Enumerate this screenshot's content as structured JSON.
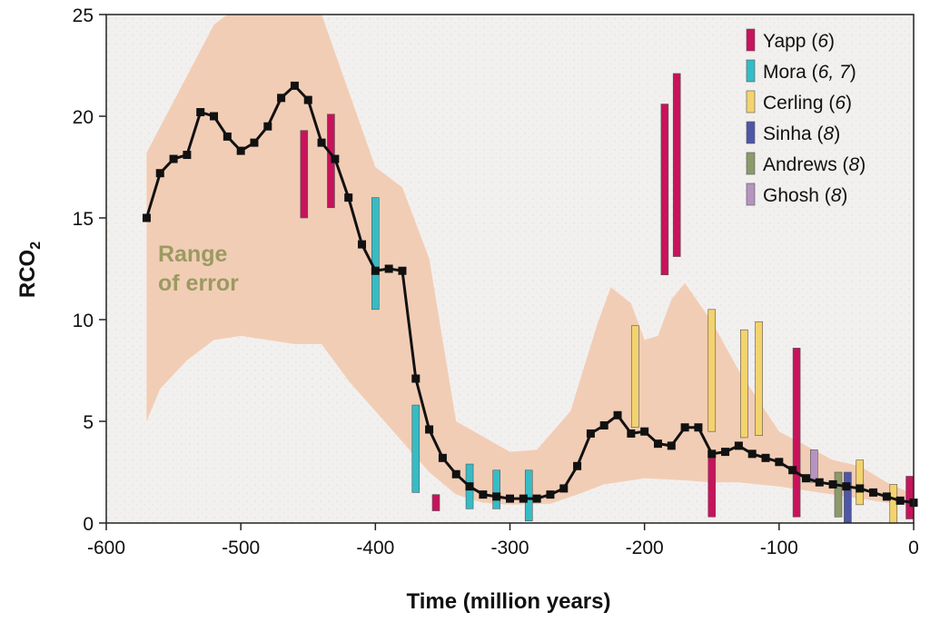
{
  "chart_data": {
    "type": "line",
    "title": "",
    "xlabel": "Time (million years)",
    "ylabel": "RCO",
    "ylabel_subscript": "2",
    "xlim": [
      -600,
      0
    ],
    "ylim": [
      0,
      25
    ],
    "x_ticks": [
      -600,
      -500,
      -400,
      -300,
      -200,
      -100,
      0
    ],
    "x_tick_labels": [
      "-600",
      "-500",
      "-400",
      "-300",
      "-200",
      "-100",
      "0"
    ],
    "y_ticks": [
      0,
      5,
      10,
      15,
      20,
      25
    ],
    "y_tick_labels": [
      "0",
      "5",
      "10",
      "15",
      "20",
      "25"
    ],
    "grid": false,
    "legend_position": "top-right",
    "colors": {
      "model_line": "#111111",
      "error_band": "#f2cdb5",
      "plot_background": "#f3f1ef",
      "Yapp": "#c8135c",
      "Mora": "#36bcc6",
      "Cerling": "#f4d36e",
      "Sinha": "#4f56a5",
      "Andrews": "#8c9a6a",
      "Ghosh": "#b694c0"
    },
    "annotation": {
      "line1": "Range",
      "line2": "of error"
    },
    "error_band": {
      "upper": [
        [
          -570,
          18.2
        ],
        [
          -520,
          24.5
        ],
        [
          -510,
          25
        ],
        [
          -440,
          25
        ],
        [
          -400,
          17.5
        ],
        [
          -380,
          16.5
        ],
        [
          -360,
          13
        ],
        [
          -340,
          5
        ],
        [
          -300,
          3.5
        ],
        [
          -280,
          3.6
        ],
        [
          -255,
          5.5
        ],
        [
          -235,
          9.8
        ],
        [
          -225,
          11.6
        ],
        [
          -210,
          10.8
        ],
        [
          -200,
          9
        ],
        [
          -190,
          9.2
        ],
        [
          -180,
          11
        ],
        [
          -170,
          11.8
        ],
        [
          -150,
          9.9
        ],
        [
          -130,
          7.5
        ],
        [
          -100,
          4.5
        ],
        [
          -80,
          3.8
        ],
        [
          -60,
          3.1
        ],
        [
          -40,
          2.8
        ],
        [
          -20,
          2
        ],
        [
          0,
          1.4
        ]
      ],
      "lower": [
        [
          0,
          0.9
        ],
        [
          -20,
          1
        ],
        [
          -40,
          1.2
        ],
        [
          -60,
          1.4
        ],
        [
          -80,
          1.6
        ],
        [
          -100,
          1.8
        ],
        [
          -130,
          2
        ],
        [
          -150,
          2
        ],
        [
          -170,
          2.1
        ],
        [
          -200,
          2.2
        ],
        [
          -230,
          1.9
        ],
        [
          -250,
          1.4
        ],
        [
          -270,
          0.95
        ],
        [
          -300,
          0.9
        ],
        [
          -320,
          1
        ],
        [
          -340,
          1.4
        ],
        [
          -360,
          2.5
        ],
        [
          -380,
          4
        ],
        [
          -400,
          5.5
        ],
        [
          -420,
          7
        ],
        [
          -440,
          8.8
        ],
        [
          -460,
          8.8
        ],
        [
          -480,
          9
        ],
        [
          -500,
          9.2
        ],
        [
          -520,
          9
        ],
        [
          -540,
          8
        ],
        [
          -560,
          6.6
        ],
        [
          -570,
          5
        ]
      ]
    },
    "series": [
      {
        "type": "line",
        "x": [
          -570,
          -560,
          -550,
          -540,
          -530,
          -520,
          -510,
          -500,
          -490,
          -480,
          -470,
          -460,
          -450,
          -440,
          -430,
          -420,
          -410,
          -400,
          -390,
          -380,
          -370,
          -360,
          -350,
          -340,
          -330,
          -320,
          -310,
          -300,
          -290,
          -280,
          -270,
          -260,
          -250,
          -240,
          -230,
          -220,
          -210,
          -200,
          -190,
          -180,
          -170,
          -160,
          -150,
          -140,
          -130,
          -120,
          -110,
          -100,
          -90,
          -80,
          -70,
          -60,
          -50,
          -40,
          -30,
          -20,
          -10,
          0
        ],
        "y": [
          15,
          17.2,
          17.9,
          18.1,
          20.2,
          20,
          19,
          18.3,
          18.7,
          19.5,
          20.9,
          21.5,
          20.8,
          18.7,
          17.9,
          16,
          13.7,
          12.4,
          12.5,
          12.4,
          7.1,
          4.6,
          3.2,
          2.4,
          1.8,
          1.4,
          1.3,
          1.2,
          1.2,
          1.2,
          1.4,
          1.7,
          2.8,
          4.4,
          4.8,
          5.3,
          4.4,
          4.5,
          3.9,
          3.8,
          4.7,
          4.7,
          3.4,
          3.5,
          3.8,
          3.4,
          3.2,
          3,
          2.6,
          2.2,
          2,
          1.9,
          1.8,
          1.7,
          1.5,
          1.3,
          1.1,
          1
        ]
      }
    ],
    "legend": [
      {
        "key": "Yapp",
        "name": "Yapp",
        "ref": "6"
      },
      {
        "key": "Mora",
        "name": "Mora",
        "ref": "6, 7"
      },
      {
        "key": "Cerling",
        "name": "Cerling",
        "ref": "6"
      },
      {
        "key": "Sinha",
        "name": "Sinha",
        "ref": "8"
      },
      {
        "key": "Andrews",
        "name": "Andrews",
        "ref": "8"
      },
      {
        "key": "Ghosh",
        "name": "Ghosh",
        "ref": "8"
      }
    ],
    "proxy_bars": [
      {
        "source": "Yapp",
        "x": -453,
        "low": 15,
        "high": 19.3
      },
      {
        "source": "Yapp",
        "x": -433,
        "low": 15.5,
        "high": 20.1
      },
      {
        "source": "Mora",
        "x": -400,
        "low": 10.5,
        "high": 16
      },
      {
        "source": "Mora",
        "x": -370,
        "low": 1.5,
        "high": 5.8
      },
      {
        "source": "Yapp",
        "x": -355,
        "low": 0.6,
        "high": 1.4
      },
      {
        "source": "Mora",
        "x": -330,
        "low": 0.7,
        "high": 2.9
      },
      {
        "source": "Mora",
        "x": -310,
        "low": 0.7,
        "high": 2.6
      },
      {
        "source": "Mora",
        "x": -286,
        "low": 0.1,
        "high": 2.6
      },
      {
        "source": "Cerling",
        "x": -207,
        "low": 4.7,
        "high": 9.7
      },
      {
        "source": "Yapp",
        "x": -185,
        "low": 12.2,
        "high": 20.6
      },
      {
        "source": "Yapp",
        "x": -176,
        "low": 13.1,
        "high": 22.1
      },
      {
        "source": "Cerling",
        "x": -150,
        "low": 4.5,
        "high": 10.5
      },
      {
        "source": "Yapp",
        "x": -150,
        "low": 0.3,
        "high": 3.2
      },
      {
        "source": "Cerling",
        "x": -126,
        "low": 4.2,
        "high": 9.5
      },
      {
        "source": "Cerling",
        "x": -115,
        "low": 4.3,
        "high": 9.9
      },
      {
        "source": "Yapp",
        "x": -87,
        "low": 0.3,
        "high": 8.6
      },
      {
        "source": "Ghosh",
        "x": -74,
        "low": 2,
        "high": 3.6
      },
      {
        "source": "Andrews",
        "x": -56,
        "low": 0.3,
        "high": 2.5
      },
      {
        "source": "Sinha",
        "x": -49,
        "low": 0,
        "high": 2.5
      },
      {
        "source": "Cerling",
        "x": -40,
        "low": 0.9,
        "high": 3.1
      },
      {
        "source": "Cerling",
        "x": -15,
        "low": 0,
        "high": 1.9
      },
      {
        "source": "Yapp",
        "x": -3,
        "low": 0.2,
        "high": 2.3
      }
    ]
  }
}
